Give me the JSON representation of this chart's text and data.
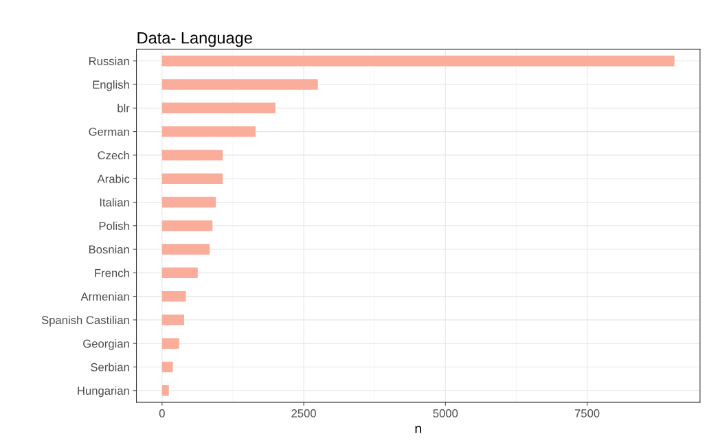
{
  "chart_data": {
    "type": "bar",
    "orientation": "horizontal",
    "title": "Data- Language",
    "xlabel": "n",
    "categories": [
      "Russian",
      "English",
      "blr",
      "German",
      "Czech",
      "Arabic",
      "Italian",
      "Polish",
      "Bosnian",
      "French",
      "Armenian",
      "Spanish Castilian",
      "Georgian",
      "Serbian",
      "Hungarian"
    ],
    "values": [
      9040,
      2750,
      2000,
      1650,
      1070,
      1070,
      950,
      890,
      840,
      630,
      420,
      390,
      300,
      190,
      120
    ],
    "color": "#f9ad9a",
    "xlim": [
      -452,
      9492
    ],
    "xticks": [
      0,
      2500,
      5000,
      7500
    ],
    "grid": true
  }
}
